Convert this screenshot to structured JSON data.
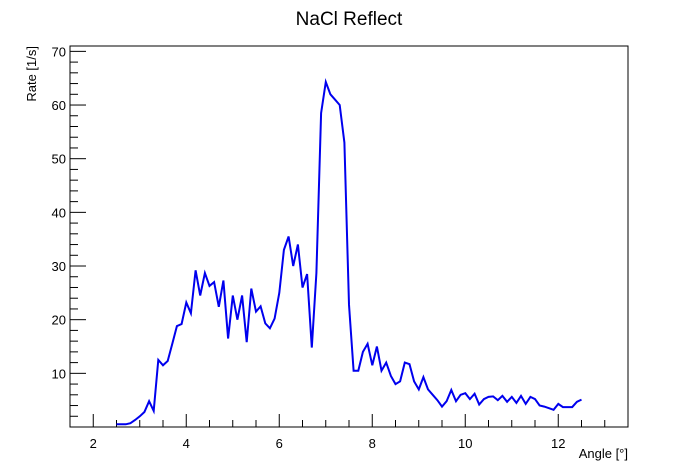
{
  "chart_data": {
    "type": "line",
    "title": "NaCl Reflect",
    "xlabel": "Angle [°]",
    "ylabel": "Rate [1/s]",
    "xlim": [
      1.5,
      13.5
    ],
    "ylim": [
      0,
      71
    ],
    "grid": false,
    "x_ticks": [
      "2",
      "4",
      "6",
      "8",
      "10",
      "12"
    ],
    "y_ticks": [
      "10",
      "20",
      "30",
      "40",
      "50",
      "60",
      "70"
    ],
    "series": [
      {
        "color": "#0000ee",
        "x": [
          2.5,
          2.6,
          2.7,
          2.8,
          2.9,
          3.0,
          3.1,
          3.2,
          3.3,
          3.4,
          3.5,
          3.6,
          3.7,
          3.8,
          3.9,
          4.0,
          4.1,
          4.2,
          4.3,
          4.4,
          4.5,
          4.6,
          4.7,
          4.8,
          4.9,
          5.0,
          5.1,
          5.2,
          5.3,
          5.4,
          5.5,
          5.6,
          5.7,
          5.8,
          5.9,
          6.0,
          6.1,
          6.2,
          6.3,
          6.4,
          6.5,
          6.6,
          6.7,
          6.8,
          6.9,
          7.0,
          7.1,
          7.2,
          7.3,
          7.4,
          7.5,
          7.6,
          7.7,
          7.8,
          7.9,
          8.0,
          8.1,
          8.2,
          8.3,
          8.4,
          8.5,
          8.6,
          8.7,
          8.8,
          8.9,
          9.0,
          9.1,
          9.2,
          9.3,
          9.4,
          9.5,
          9.6,
          9.7,
          9.8,
          9.9,
          10.0,
          10.1,
          10.2,
          10.3,
          10.4,
          10.5,
          10.6,
          10.7,
          10.8,
          10.9,
          11.0,
          11.1,
          11.2,
          11.3,
          11.4,
          11.5,
          11.6,
          11.7,
          11.8,
          11.9,
          12.0,
          12.1,
          12.2,
          12.3,
          12.4,
          12.5
        ],
        "y": [
          0.5,
          0.5,
          0.5,
          0.7,
          1.3,
          2.0,
          2.8,
          4.8,
          3.0,
          12.5,
          11.5,
          12.3,
          15.5,
          18.8,
          19.2,
          23.2,
          21.2,
          29.2,
          24.5,
          28.7,
          26.3,
          27.0,
          22.4,
          27.3,
          16.5,
          24.5,
          20.0,
          24.5,
          15.8,
          25.8,
          21.5,
          22.5,
          19.3,
          18.4,
          20.2,
          25.0,
          33.0,
          35.5,
          30.0,
          34.0,
          26.0,
          28.5,
          14.8,
          28.7,
          58.5,
          64.3,
          62.0,
          61.0,
          60.0,
          53.0,
          22.8,
          10.5,
          10.5,
          14.0,
          15.5,
          11.5,
          15.0,
          10.5,
          12.0,
          9.5,
          8.0,
          8.5,
          12.0,
          11.7,
          8.5,
          7.0,
          9.3,
          7.0,
          6.0,
          5.0,
          3.8,
          4.8,
          6.9,
          4.8,
          6.0,
          6.3,
          5.2,
          6.2,
          4.2,
          5.2,
          5.6,
          5.7,
          5.0,
          5.8,
          4.7,
          5.6,
          4.5,
          5.8,
          4.3,
          5.6,
          5.2,
          4.0,
          3.8,
          3.5,
          3.2,
          4.3,
          3.7,
          3.7,
          3.7,
          4.7,
          5.1
        ]
      }
    ]
  }
}
